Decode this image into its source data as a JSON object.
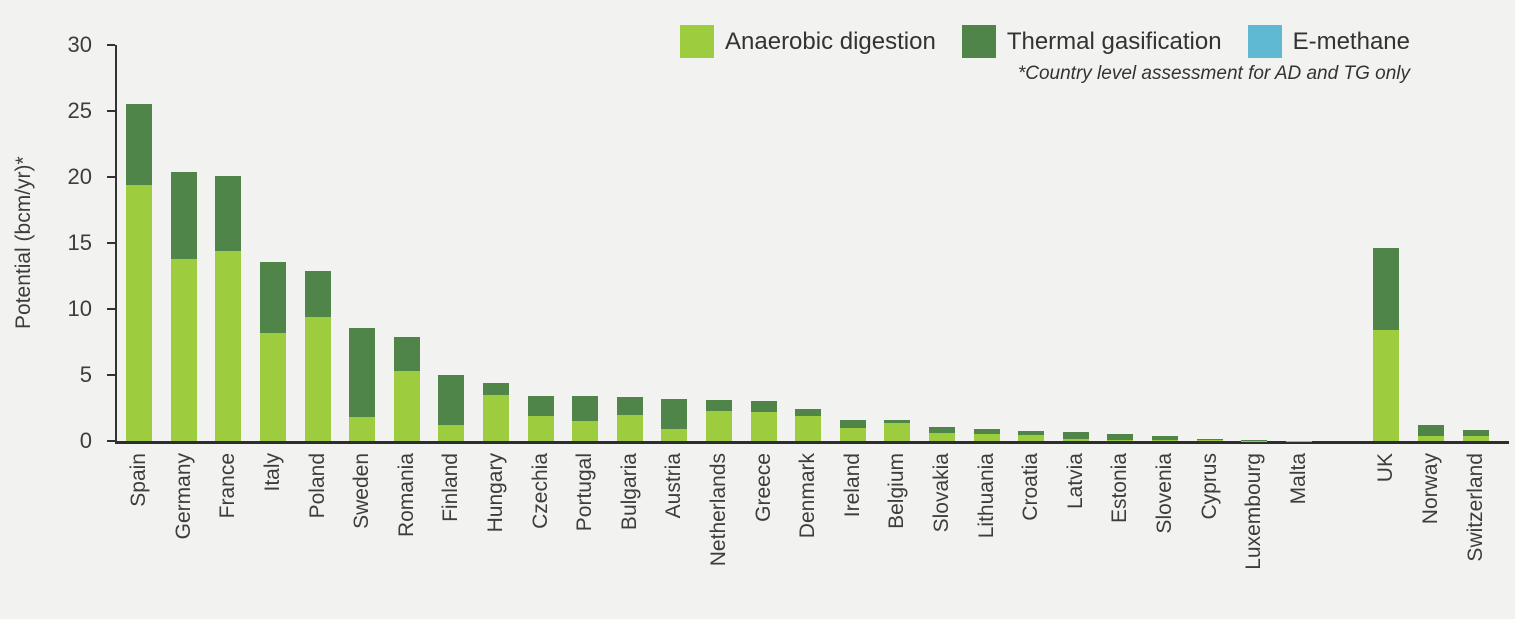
{
  "legend": {
    "items": [
      {
        "label": "Anaerobic digestion",
        "color": "#9DCC3F"
      },
      {
        "label": "Thermal gasification",
        "color": "#4F8548"
      },
      {
        "label": "E-methane",
        "color": "#5FB9D2"
      }
    ],
    "footnote": "*Country level assessment for AD and TG only"
  },
  "colors": {
    "background": "#F2F2F0",
    "axis": "#333333",
    "text": "#3d3d3d"
  },
  "chart_data": {
    "type": "bar",
    "stacked": true,
    "title": "",
    "xlabel": "",
    "ylabel": "Potential (bcm/yr)*",
    "ylim": [
      0,
      30
    ],
    "yticks": [
      0,
      5,
      10,
      15,
      20,
      25,
      30
    ],
    "grid": false,
    "legend_position": "top-right",
    "group_break_after": "Malta",
    "categories": [
      "Spain",
      "Germany",
      "France",
      "Italy",
      "Poland",
      "Sweden",
      "Romania",
      "Finland",
      "Hungary",
      "Czechia",
      "Portugal",
      "Bulgaria",
      "Austria",
      "Netherlands",
      "Greece",
      "Denmark",
      "Ireland",
      "Belgium",
      "Slovakia",
      "Lithuania",
      "Croatia",
      "Latvia",
      "Estonia",
      "Slovenia",
      "Cyprus",
      "Luxembourg",
      "Malta",
      "UK",
      "Norway",
      "Switzerland"
    ],
    "series": [
      {
        "name": "Anaerobic digestion",
        "color": "#9DCC3F",
        "values": [
          19.4,
          13.8,
          14.4,
          8.2,
          9.4,
          1.8,
          5.3,
          1.2,
          3.5,
          1.9,
          1.5,
          2.0,
          0.9,
          2.3,
          2.2,
          1.9,
          1.0,
          1.35,
          0.6,
          0.55,
          0.45,
          0.15,
          0.1,
          0.08,
          0.1,
          0.03,
          0.02,
          8.4,
          0.4,
          0.36
        ]
      },
      {
        "name": "Thermal gasification",
        "color": "#4F8548",
        "values": [
          6.1,
          6.6,
          5.7,
          5.4,
          3.5,
          6.8,
          2.6,
          3.8,
          0.9,
          1.5,
          1.9,
          1.3,
          2.3,
          0.8,
          0.8,
          0.5,
          0.6,
          0.25,
          0.45,
          0.35,
          0.3,
          0.5,
          0.4,
          0.32,
          0.05,
          0.02,
          0.01,
          6.2,
          0.8,
          0.5
        ]
      },
      {
        "name": "E-methane",
        "color": "#5FB9D2",
        "values": [
          0,
          0,
          0,
          0,
          0,
          0,
          0,
          0,
          0,
          0,
          0,
          0,
          0,
          0,
          0,
          0,
          0,
          0,
          0,
          0,
          0,
          0,
          0,
          0,
          0,
          0,
          0,
          0,
          0,
          0
        ]
      }
    ]
  }
}
